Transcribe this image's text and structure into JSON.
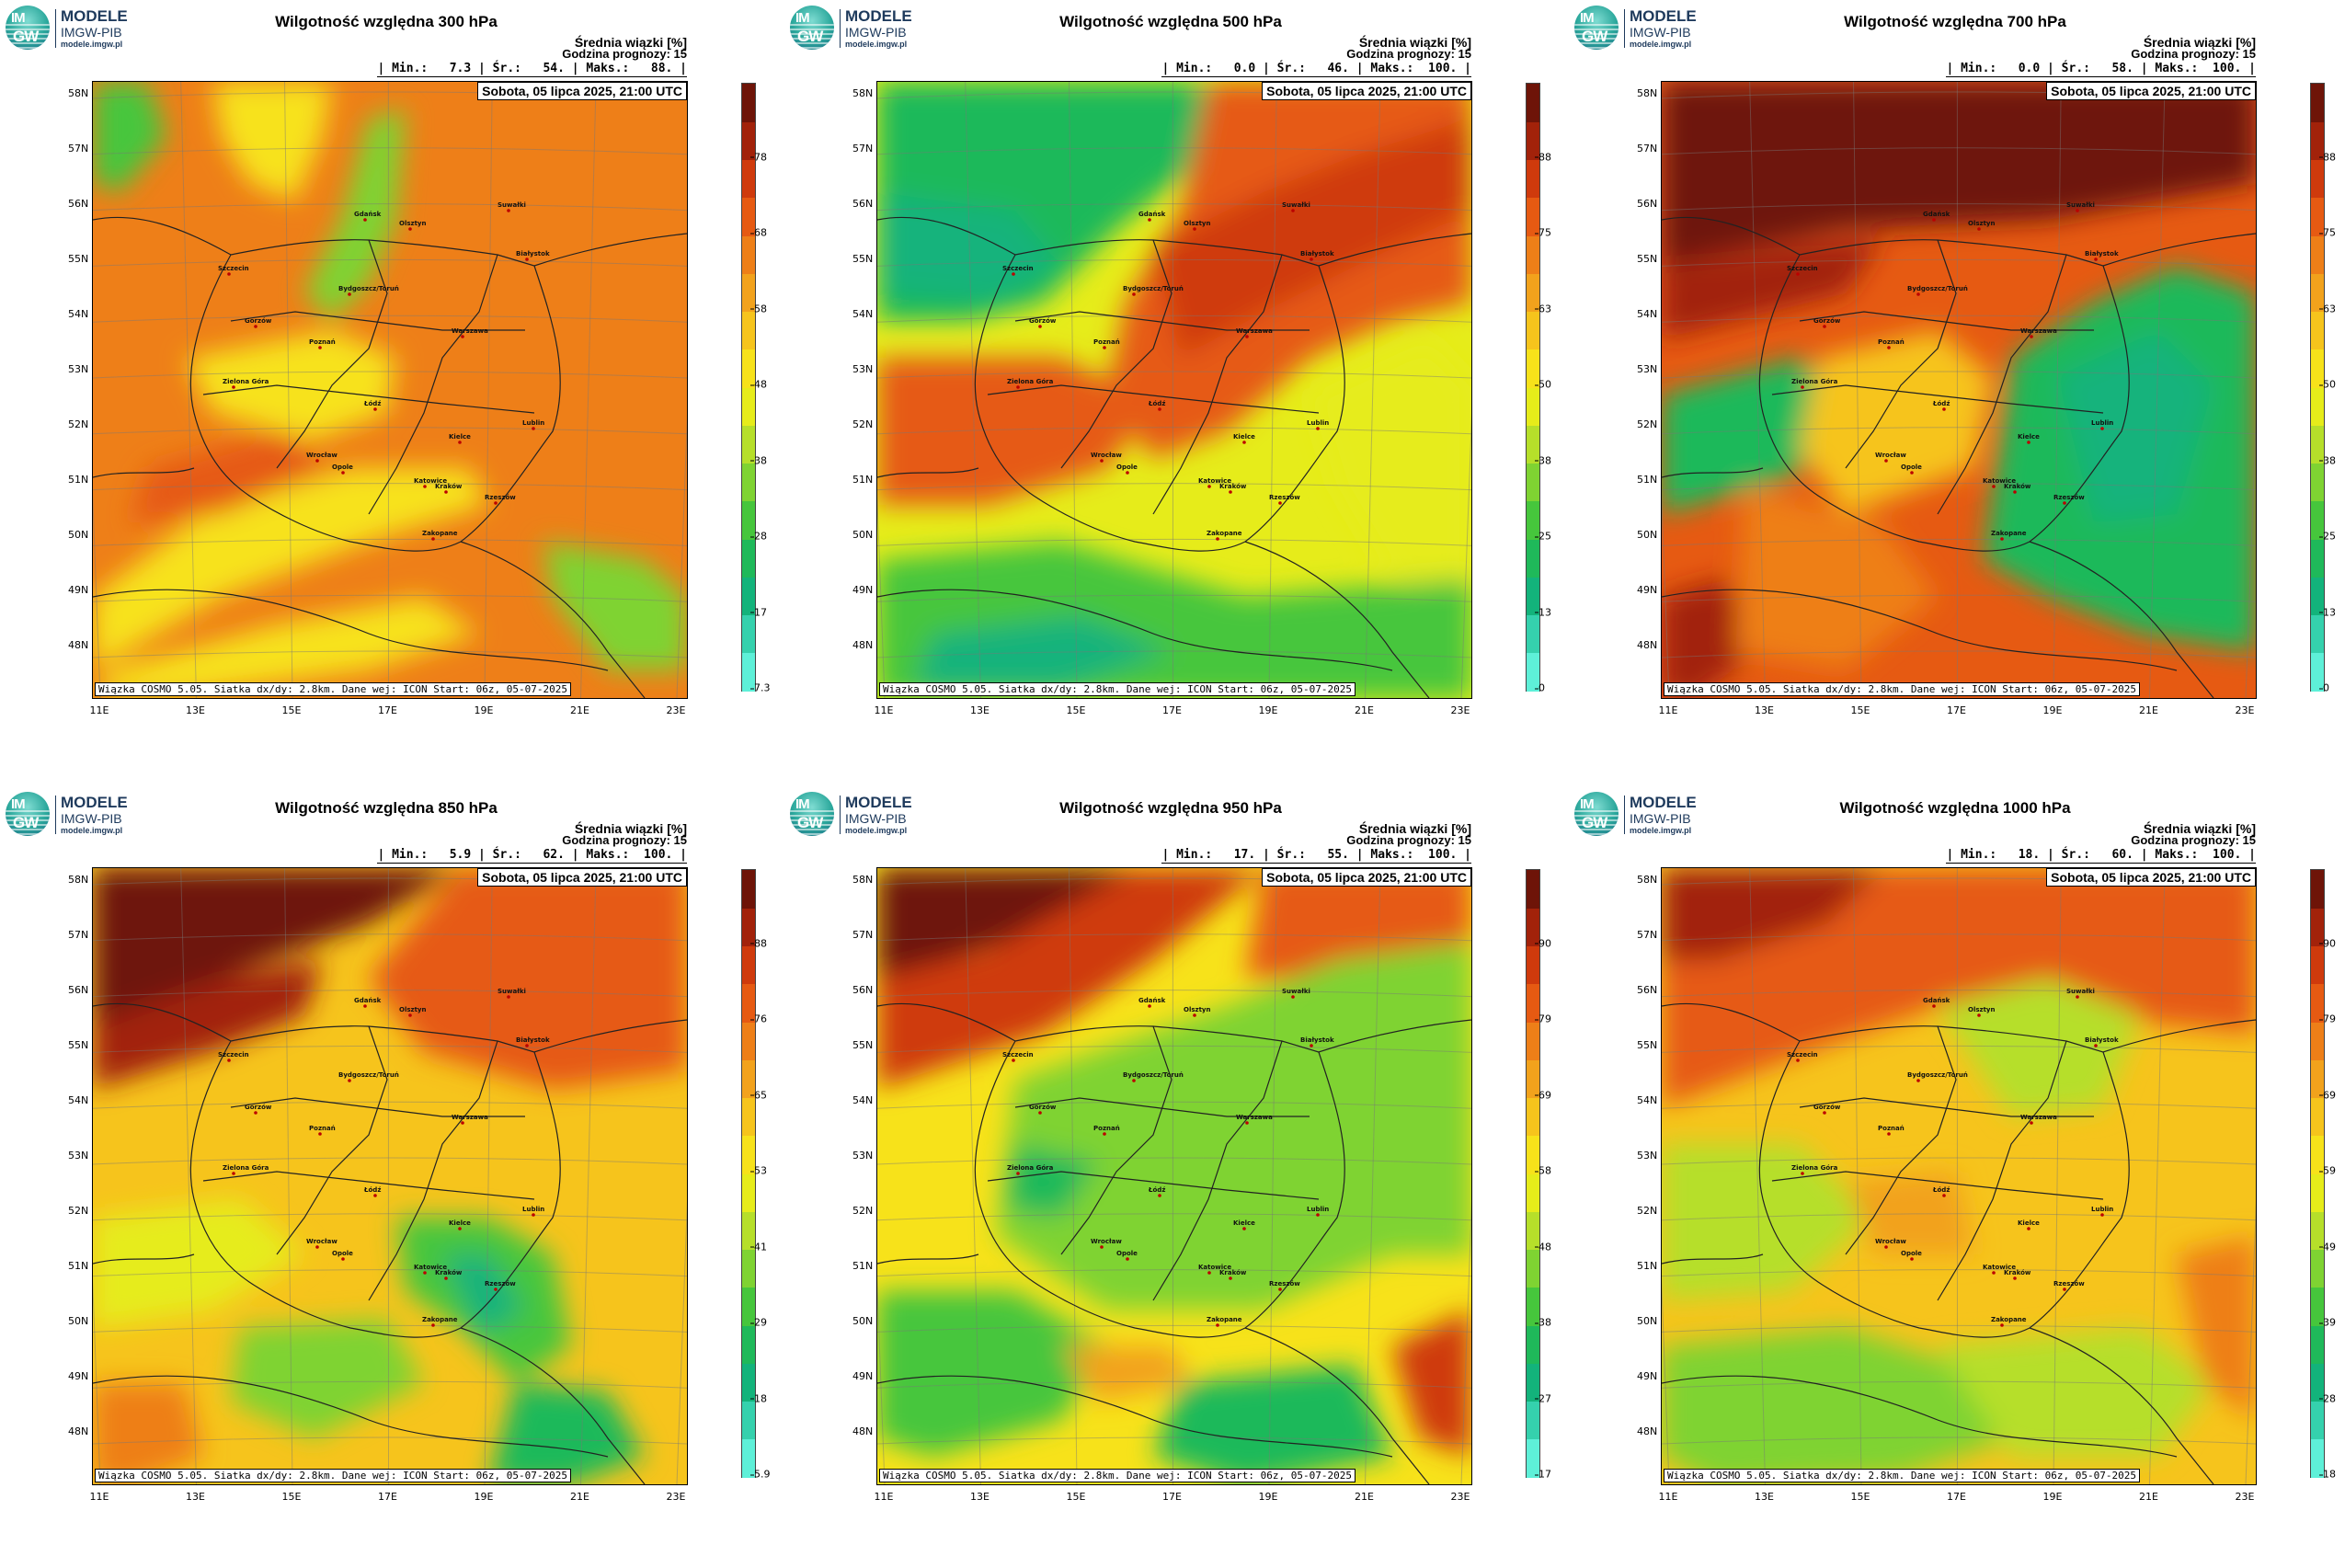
{
  "logo": {
    "badge_top": "IM",
    "badge_bottom": "GW",
    "line1": "MODELE",
    "line2": "IMGW-PIB",
    "line3": "modele.imgw.pl"
  },
  "common": {
    "header1": "Średnia wiązki [%]",
    "header2": "Godzina prognozy: 15",
    "date": "Sobota, 05 lipca 2025, 21:00 UTC",
    "footer": "Wiązka COSMO 5.05. Siatka dx/dy: 2.8km. Dane wej: ICON Start: 06z, 05-07-2025",
    "lat_labels": [
      "58N",
      "57N",
      "56N",
      "55N",
      "54N",
      "53N",
      "52N",
      "51N",
      "50N",
      "49N",
      "48N"
    ],
    "lon_labels": [
      "11E",
      "13E",
      "15E",
      "17E",
      "19E",
      "21E",
      "23E"
    ]
  },
  "cities": [
    "Gdańsk",
    "Olsztyn",
    "Suwałki",
    "Szczecin",
    "Białystok",
    "Bydgoszcz/Toruń",
    "Gorzów",
    "Warszawa",
    "Poznań",
    "Zielona Góra",
    "Łódź",
    "Lublin",
    "Wrocław",
    "Kielce",
    "Opole",
    "Katowice",
    "Kraków",
    "Rzeszów",
    "Zakopane"
  ],
  "palette": [
    "#5ef0d8",
    "#35d1ad",
    "#13b37b",
    "#1fb95a",
    "#46c63c",
    "#7fd332",
    "#b6df2a",
    "#e6ec1a",
    "#f7e21a",
    "#f6c41c",
    "#f2a21c",
    "#ee7f18",
    "#e65a12",
    "#cf3a0c",
    "#a2220a",
    "#6e1408"
  ],
  "panels": [
    {
      "title": "Wilgotność względna 300 hPa",
      "stats": "| Min.:   7.3 | Śr.:   54. | Maks.:   88. |",
      "ticks": [
        "7.3",
        "17",
        "28",
        "38",
        "48",
        "58",
        "68",
        "78"
      ],
      "col": 0,
      "row": 0
    },
    {
      "title": "Wilgotność względna 500 hPa",
      "stats": "| Min.:   0.0 | Śr.:   46. | Maks.:  100. |",
      "ticks": [
        "0",
        "13",
        "25",
        "38",
        "50",
        "63",
        "75",
        "88"
      ],
      "col": 1,
      "row": 0
    },
    {
      "title": "Wilgotność względna 700 hPa",
      "stats": "| Min.:   0.0 | Śr.:   58. | Maks.:  100. |",
      "ticks": [
        "0",
        "13",
        "25",
        "38",
        "50",
        "63",
        "75",
        "88"
      ],
      "col": 2,
      "row": 0
    },
    {
      "title": "Wilgotność względna 850 hPa",
      "stats": "| Min.:   5.9 | Śr.:   62. | Maks.:  100. |",
      "ticks": [
        "5.9",
        "18",
        "29",
        "41",
        "53",
        "65",
        "76",
        "88"
      ],
      "col": 0,
      "row": 1
    },
    {
      "title": "Wilgotność względna 950 hPa",
      "stats": "| Min.:   17. | Śr.:   55. | Maks.:  100. |",
      "ticks": [
        "17",
        "27",
        "38",
        "48",
        "58",
        "69",
        "79",
        "90"
      ],
      "col": 1,
      "row": 1
    },
    {
      "title": "Wilgotność względna 1000 hPa",
      "stats": "| Min.:   18. | Śr.:   60. | Maks.:  100. |",
      "ticks": [
        "18",
        "28",
        "39",
        "49",
        "59",
        "69",
        "79",
        "90"
      ],
      "col": 2,
      "row": 1
    }
  ]
}
